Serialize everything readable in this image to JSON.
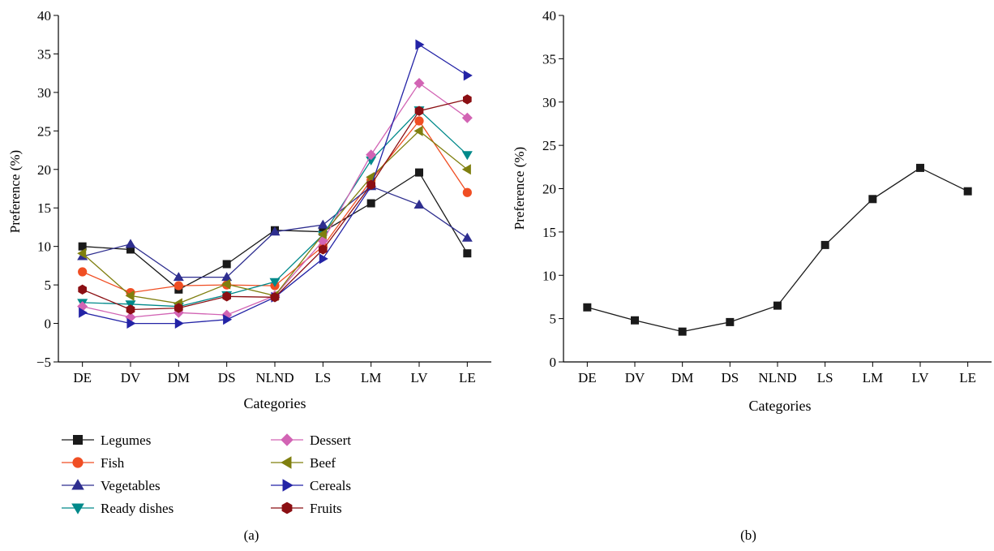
{
  "charts": [
    {
      "panel_label": "(a)",
      "chart_data": {
        "type": "line",
        "xlabel": "Categories",
        "ylabel": "Preference (%)",
        "categories": [
          "DE",
          "DV",
          "DM",
          "DS",
          "NLND",
          "LS",
          "LM",
          "LV",
          "LE"
        ],
        "ylim": [
          -5,
          40
        ],
        "yticks": [
          -5,
          0,
          5,
          10,
          15,
          20,
          25,
          30,
          35,
          40
        ],
        "grid": false,
        "legend_position": "below",
        "series": [
          {
            "name": "Legumes",
            "marker": "square",
            "color": "#1a1a1a",
            "values": [
              10.0,
              9.6,
              4.4,
              7.7,
              12.1,
              11.9,
              15.6,
              19.6,
              9.1
            ]
          },
          {
            "name": "Fish",
            "marker": "circle",
            "color": "#f04e23",
            "values": [
              6.7,
              4.0,
              4.9,
              5.0,
              4.9,
              10.0,
              18.6,
              26.3,
              17.0
            ]
          },
          {
            "name": "Vegetables",
            "marker": "triangle-up",
            "color": "#2e2e8f",
            "values": [
              8.7,
              10.3,
              6.0,
              6.0,
              11.9,
              12.8,
              17.8,
              15.4,
              11.1
            ]
          },
          {
            "name": "Ready dishes",
            "marker": "triangle-down",
            "color": "#00898a",
            "values": [
              2.7,
              2.5,
              2.2,
              3.7,
              5.4,
              11.5,
              21.2,
              27.7,
              21.9
            ]
          },
          {
            "name": "Dessert",
            "marker": "diamond",
            "color": "#d264b4",
            "values": [
              2.2,
              0.8,
              1.4,
              1.1,
              3.6,
              10.7,
              21.9,
              31.2,
              26.7
            ]
          },
          {
            "name": "Beef",
            "marker": "triangle-left",
            "color": "#7f7f0f",
            "values": [
              9.1,
              3.6,
              2.6,
              5.1,
              3.6,
              11.6,
              19.0,
              25.0,
              20.0
            ]
          },
          {
            "name": "Cereals",
            "marker": "triangle-right",
            "color": "#2323a6",
            "values": [
              1.4,
              0.0,
              0.0,
              0.5,
              3.4,
              8.4,
              17.8,
              36.2,
              32.2
            ]
          },
          {
            "name": "Fruits",
            "marker": "hexagon",
            "color": "#8b0f13",
            "values": [
              4.4,
              1.8,
              2.0,
              3.5,
              3.4,
              9.6,
              18.0,
              27.6,
              29.1
            ]
          }
        ]
      }
    },
    {
      "panel_label": "(b)",
      "chart_data": {
        "type": "line",
        "xlabel": "Categories",
        "ylabel": "Preference (%)",
        "categories": [
          "DE",
          "DV",
          "DM",
          "DS",
          "NLND",
          "LS",
          "LM",
          "LV",
          "LE"
        ],
        "ylim": [
          0,
          40
        ],
        "yticks": [
          0,
          5,
          10,
          15,
          20,
          25,
          30,
          35,
          40
        ],
        "grid": false,
        "series": [
          {
            "marker": "square",
            "color": "#1a1a1a",
            "values": [
              6.3,
              4.8,
              3.5,
              4.6,
              6.5,
              13.5,
              18.8,
              22.4,
              19.7
            ]
          }
        ]
      }
    }
  ]
}
